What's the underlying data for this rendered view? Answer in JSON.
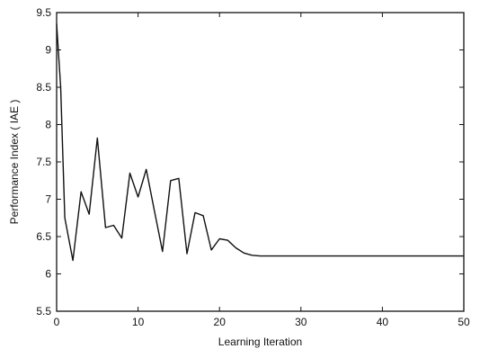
{
  "chart_data": {
    "type": "line",
    "title": "",
    "xlabel": "Learning Iteration",
    "ylabel": "Performance Index ( IAE )",
    "xlim": [
      0,
      50
    ],
    "ylim": [
      5.5,
      9.5
    ],
    "xticks": [
      0,
      10,
      20,
      30,
      40,
      50
    ],
    "xtick_labels": [
      "0",
      "10",
      "20",
      "30",
      "40",
      "50"
    ],
    "yticks": [
      5.5,
      6,
      6.5,
      7,
      7.5,
      8,
      8.5,
      9,
      9.5
    ],
    "ytick_labels": [
      "5.5",
      "6",
      "6.5",
      "7",
      "7.5",
      "8",
      "8.5",
      "9",
      "9.5"
    ],
    "grid": false,
    "legend": false,
    "line_color": "#111111",
    "series": [
      {
        "x": [
          0,
          0.5,
          1,
          2,
          3,
          4,
          5,
          6,
          7,
          8,
          9,
          10,
          11,
          12,
          13,
          14,
          15,
          16,
          17,
          18,
          19,
          20,
          21,
          22,
          23,
          24,
          25,
          30,
          40,
          50
        ],
        "y": [
          9.35,
          8.5,
          6.75,
          6.18,
          7.1,
          6.8,
          7.82,
          6.62,
          6.65,
          6.48,
          7.35,
          7.03,
          7.4,
          6.85,
          6.3,
          7.25,
          7.28,
          6.27,
          6.82,
          6.78,
          6.32,
          6.47,
          6.45,
          6.35,
          6.28,
          6.25,
          6.24,
          6.24,
          6.24,
          6.24
        ]
      }
    ]
  }
}
